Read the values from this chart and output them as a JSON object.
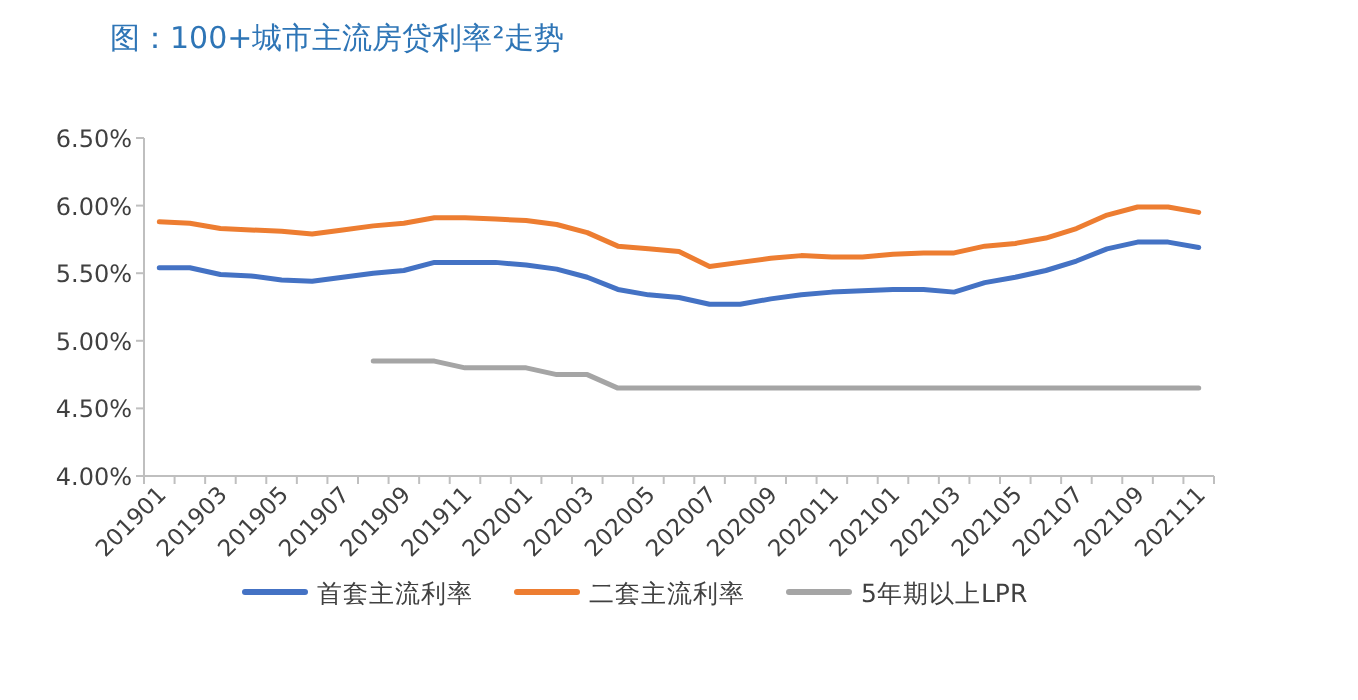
{
  "chart_data": {
    "type": "line",
    "title": "图：100+城市主流房贷利率²走势",
    "categories": [
      "201901",
      null,
      "201903",
      null,
      "201905",
      null,
      "201907",
      null,
      "201909",
      null,
      "201911",
      null,
      "202001",
      null,
      "202003",
      null,
      "202005",
      null,
      "202007",
      null,
      "202009",
      null,
      "202011",
      null,
      "202101",
      null,
      "202103",
      null,
      "202105",
      null,
      "202107",
      null,
      "202109",
      null,
      "202111"
    ],
    "series": [
      {
        "name": "首套主流利率",
        "color": "#4472c4",
        "values": [
          5.54,
          5.54,
          5.49,
          5.48,
          5.45,
          5.44,
          5.47,
          5.5,
          5.52,
          5.58,
          5.58,
          5.58,
          5.56,
          5.53,
          5.47,
          5.38,
          5.34,
          5.32,
          5.27,
          5.27,
          5.31,
          5.34,
          5.36,
          5.37,
          5.38,
          5.38,
          5.36,
          5.43,
          5.47,
          5.52,
          5.59,
          5.68,
          5.73,
          5.73,
          5.69
        ]
      },
      {
        "name": "二套主流利率",
        "color": "#ed7d31",
        "values": [
          5.88,
          5.87,
          5.83,
          5.82,
          5.81,
          5.79,
          5.82,
          5.85,
          5.87,
          5.91,
          5.91,
          5.9,
          5.89,
          5.86,
          5.8,
          5.7,
          5.68,
          5.66,
          5.55,
          5.58,
          5.61,
          5.63,
          5.62,
          5.62,
          5.64,
          5.65,
          5.65,
          5.7,
          5.72,
          5.76,
          5.83,
          5.93,
          5.99,
          5.99,
          5.95
        ]
      },
      {
        "name": "5年期以上LPR",
        "color": "#a5a5a5",
        "values": [
          null,
          null,
          null,
          null,
          null,
          null,
          null,
          4.85,
          4.85,
          4.85,
          4.8,
          4.8,
          4.8,
          4.75,
          4.75,
          4.65,
          4.65,
          4.65,
          4.65,
          4.65,
          4.65,
          4.65,
          4.65,
          4.65,
          4.65,
          4.65,
          4.65,
          4.65,
          4.65,
          4.65,
          4.65,
          4.65,
          4.65,
          4.65,
          4.65
        ]
      }
    ],
    "ylim": [
      4.0,
      6.5
    ],
    "yticks": [
      {
        "value": 4.0,
        "label": "4.00%"
      },
      {
        "value": 4.5,
        "label": "4.50%"
      },
      {
        "value": 5.0,
        "label": "5.00%"
      },
      {
        "value": 5.5,
        "label": "5.50%"
      },
      {
        "value": 6.0,
        "label": "6.00%"
      },
      {
        "value": 6.5,
        "label": "6.50%"
      }
    ],
    "legend": "bottom"
  }
}
